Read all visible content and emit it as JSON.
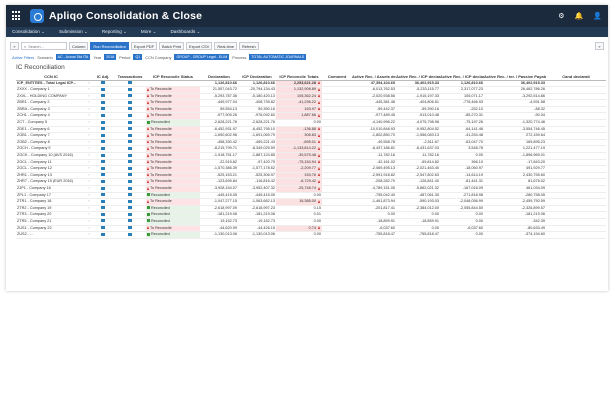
{
  "app": {
    "title": "Apliqo Consolidation & Close",
    "top_right": [
      "⚙",
      "🔔",
      "👤"
    ]
  },
  "menu": [
    "Consolidation ⌄",
    "Submission ⌄",
    "Reporting ⌄",
    "More ⌄",
    "Dashboards ⌄"
  ],
  "toolbar": {
    "back": "«",
    "search_placeholder": "Search...",
    "column": "Column",
    "run": "Run Reconciliation",
    "export_pdf": "Export PDF",
    "batch_print": "Batch Print",
    "export_csv": "Export CSV",
    "real_time": "Real-time",
    "refresh": "Refresh",
    "more": "»"
  },
  "filters": {
    "active_label": "Active Filters",
    "scenario_label": "Scenario",
    "scenario": "AC - Actual Std ITA",
    "year_label": "Year",
    "year": "2018",
    "period_label": "Period",
    "period": "Q1",
    "ccn_label": "CCN Company",
    "ccn": "GROUP - GROUP Legal - ELIM",
    "process_label": "Process",
    "process": "TOTAL AUTOMATIC JOURNALS"
  },
  "page_title": "IC Reconciliation",
  "columns": [
    "CCN IC",
    "",
    "IC Adj.",
    "Transactions",
    "ICP Reconcile Status",
    "Declaration",
    "ICP Declaration",
    "ICP Reconcile Totals",
    "Comment",
    "Active Rec. / Assets declarati",
    "Active Rec. / ICP declarati",
    "Active Rec. / ICP declarati",
    "Active Rec. / ter. / Passive Payab...",
    "Cand declarati"
  ],
  "rows": [
    {
      "name": "ICP_ENTITIES - Total Legal ICP...",
      "status": "",
      "s": "",
      "decl": "1,126,810.66",
      "icp": "1,126,810.66",
      "tot": "2,253,621.28",
      "t": "warn",
      "a": "47,394,104.69",
      "b": "36,402,915.33",
      "c": "1,126,810.66",
      "d": "36,402,915.33",
      "total": true
    },
    {
      "name": "ZXXX - Company 1",
      "status": "To Reconcile",
      "s": "r",
      "decl": "21,557,043.72",
      "icp": "-20,794,134.43",
      "tot": "1,132,908.89",
      "t": "warn",
      "a": "-6,013,762.53",
      "b": "-5,233,115.77",
      "c": "2,317,077.23",
      "d": "26,462,786.26"
    },
    {
      "name": "ZXXL - HOLDING COMPANY",
      "status": "To Reconcile",
      "s": "r",
      "decl": "-5,293,787.36",
      "icp": "-5,180,420.13",
      "tot": "105,362.24",
      "t": "warn",
      "a": "-2,020,938.56",
      "b": "-1,915,197.33",
      "c": "105,071.17",
      "d": "-3,292,514.86"
    },
    {
      "name": "ZBR1 - Company 2",
      "status": "To Reconcile",
      "s": "r",
      "decl": "-449,977.04",
      "icp": "-408,739.82",
      "tot": "-41,236.22",
      "t": "warn",
      "a": "-445,381.46",
      "b": "-404,806.51",
      "c": "-776,466.93",
      "d": "-4,591.58"
    },
    {
      "name": "ZBRA - Company 3",
      "status": "To Reconcile",
      "s": "r",
      "decl": "59,554.13",
      "icp": "59,390.16",
      "tot": "163.97",
      "t": "warn",
      "a": "-59,442.37",
      "b": "-59,390.16",
      "c": "-252.10",
      "d": "-88.32"
    },
    {
      "name": "ZCH1 - Company 4",
      "status": "To Reconcile",
      "s": "r",
      "decl": "-977,905.26",
      "icp": "-976,092.60",
      "tot": "1,887.66",
      "t": "warn",
      "a": "-977,489.45",
      "b": "-913,010.48",
      "c": "-85,270.31",
      "d": "-90.34"
    },
    {
      "name": "ZCT - Company 5",
      "status": "Reconciled",
      "s": "g",
      "decl": "-2,628,221.76",
      "icp": "-2,628,221.76",
      "tot": "0.00",
      "t": "",
      "a": "-4,140,996.22",
      "b": "-4,075,798.96",
      "c": "-75,197.26",
      "d": "-1,320,774.46"
    },
    {
      "name": "ZDE1 - Company 6",
      "status": "To Reconcile",
      "s": "r",
      "decl": "-6,452,931.97",
      "icp": "-6,452,795.10",
      "tot": "-136.88",
      "t": "warn",
      "a": "-10,010,848.93",
      "b": "-9,952,804.52",
      "c": "-64,141.46",
      "d": "-3,554,746.45"
    },
    {
      "name": "ZGB1 - Company 7",
      "status": "To Reconcile",
      "s": "r",
      "decl": "-1,690,602.96",
      "icp": "-1,691,069.79",
      "tot": "306.83",
      "t": "warn",
      "a": "-1,802,850.70",
      "b": "-1,556,083.13",
      "c": "-41,254.48",
      "d": "272,159.64"
    },
    {
      "name": "ZGB2 - Company 8",
      "status": "To Reconcile",
      "s": "r",
      "decl": "-458,330.42",
      "icp": "-459,221.43",
      "tot": "-895.01",
      "t": "warn",
      "a": "-49,558.78",
      "b": "-2,511.67",
      "c": "-63,047.70",
      "d": "169,895.23"
    },
    {
      "name": "ZGCH - Company 9",
      "status": "To Reconcile",
      "s": "r",
      "decl": "-8,215,799.71",
      "icp": "-8,349,025.59",
      "tot": "-1,133,814.22",
      "t": "warn",
      "a": "-6,437,186.81",
      "b": "-6,431,637.03",
      "c": "3,548.78",
      "d": "1,221,477.19"
    },
    {
      "name": "ZGCK - Company 10 (AVS 2016)",
      "status": "To Reconcile",
      "s": "r",
      "decl": "-1,918,751.17",
      "icp": "-1,887,124.85",
      "tot": "-30,575.48",
      "t": "warn",
      "a": "-11,782.16",
      "b": "11,782.16",
      "c": "0.00",
      "d": "-1,896,969.01"
    },
    {
      "name": "ZGCL - Company 11",
      "status": "To Reconcile",
      "s": "r",
      "decl": "-22,915.82",
      "icp": "-97,420.75",
      "tot": "-75,154.94",
      "t": "warn",
      "a": "-42,161.02",
      "b": "-69,814.82",
      "c": "366.10",
      "d": "-17,843.20"
    },
    {
      "name": "ZGCL - Company 12",
      "status": "To Reconcile",
      "s": "r",
      "decl": "-1,570,386.39",
      "icp": "-1,577,178.62",
      "tot": "-2,209.77",
      "t": "warn",
      "a": "-2,069,495.13",
      "b": "-2,021,463.40",
      "c": "-18,060.97",
      "d": "491,929.77"
    },
    {
      "name": "ZHR1 - Company 13",
      "status": "To Reconcile",
      "s": "r",
      "decl": "-525,153.21",
      "icp": "-525,306.97",
      "tot": "153.76",
      "t": "warn",
      "a": "-2,591,918.82",
      "b": "-2,547,802.63",
      "c": "-14,614.19",
      "d": "2,430,755.60"
    },
    {
      "name": "ZHR7 - Company 15 (EUR 2016)",
      "status": "To Reconcile",
      "s": "r",
      "decl": "-123,695.84",
      "icp": "-116,816.42",
      "tot": "-6,729.42",
      "t": "warn",
      "a": "-208,282.70",
      "b": "-126,841.40",
      "c": "-81,441.31",
      "d": "81,678.02"
    },
    {
      "name": "ZJP1 - Company 16",
      "status": "To Reconcile",
      "s": "r",
      "decl": "-3,928,154.07",
      "icp": "-3,952,407.32",
      "tot": "-25,748.74",
      "t": "warn",
      "a": "-4,789,151.05",
      "b": "-5,862,021.32",
      "c": "-167,016.09",
      "d": "461,034.09"
    },
    {
      "name": "ZPL1 - Company 17",
      "status": "Reconciled",
      "s": "g",
      "decl": "-445,415.05",
      "icp": "-445,415.05",
      "tot": "0.00",
      "t": "",
      "a": "-755,042.40",
      "b": "-487,061.30",
      "c": "-271,818.98",
      "d": "-280,758.05"
    },
    {
      "name": "ZTR1 - Company 18",
      "status": "To Reconcile",
      "s": "r",
      "decl": "-1,047,277.15",
      "icp": "-1,063,662.13",
      "tot": "16,385.00",
      "t": "warn",
      "a": "-1,461,873.94",
      "b": "-590,193.03",
      "c": "-2,048,056.99",
      "d": "-2,459,750.59"
    },
    {
      "name": "ZTR2 - Company 19",
      "status": "Reconciled",
      "s": "g",
      "decl": "-2,618,997.09",
      "icp": "-2,618,997.23",
      "tot": "0.15",
      "t": "",
      "a": "-201,817.41",
      "b": "-2,384,012.00",
      "c": "-2,055,844.50",
      "d": "-2,326,899.57"
    },
    {
      "name": "ZTR3 - Company 20",
      "status": "Reconciled",
      "s": "g",
      "decl": "-181,219.06",
      "icp": "-181,219.06",
      "tot": "0.01",
      "t": "",
      "a": "0.00",
      "b": "0.00",
      "c": "0.00",
      "d": "-181,219.06"
    },
    {
      "name": "ZTR5 - Company 21",
      "status": "Reconciled",
      "s": "g",
      "decl": "19,152.73",
      "icp": "-19,152.73",
      "tot": "0.00",
      "t": "",
      "a": "-18,859.91",
      "b": "-18,859.91",
      "c": "0.00",
      "d": "-342.39"
    },
    {
      "name": "ZUS1 - Company 22",
      "status": "To Reconcile",
      "s": "r",
      "decl": "-44,620.99",
      "icp": "-44,426.15",
      "tot": "0.74",
      "t": "warn",
      "a": "-6,037.60",
      "b": "0.00",
      "c": "-6,037.60",
      "d": "-80,633.49"
    },
    {
      "name": "ZUS2 - ...",
      "status": "Reconciled",
      "s": "g",
      "decl": "-1,130,013.06",
      "icp": "-1,130,013.06",
      "tot": "0.00",
      "t": "",
      "a": "-755,818.47",
      "b": "-755,818.47",
      "c": "0.00",
      "d": "-374,194.60"
    }
  ]
}
